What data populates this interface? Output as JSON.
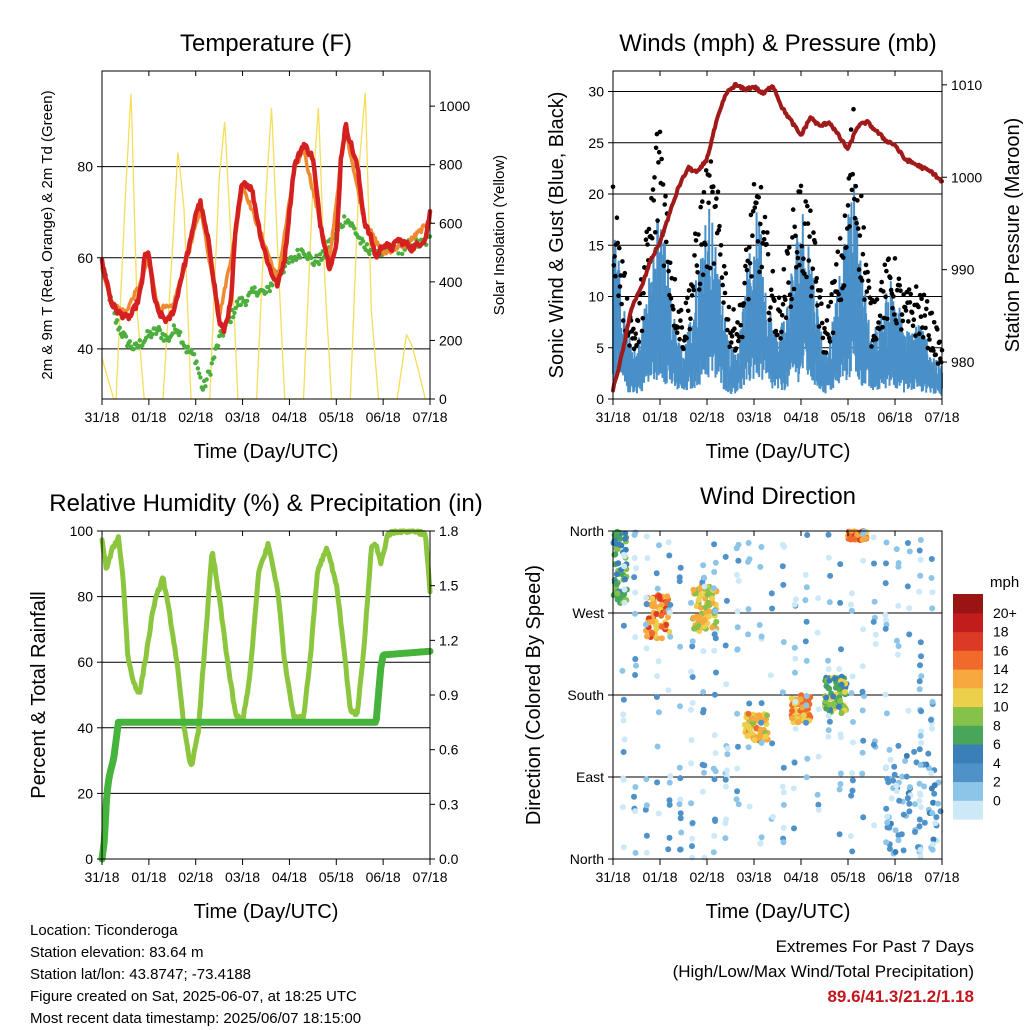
{
  "panels": {
    "temperature": {
      "title": "Temperature (F)",
      "xlabel": "Time (Day/UTC)",
      "ylabel_left": "2m & 9m T (Red, Orange) & 2m Td (Green)",
      "ylabel_right": "Solar Insolation (Yellow)"
    },
    "winds": {
      "title": "Winds (mph) & Pressure (mb)",
      "xlabel": "Time (Day/UTC)",
      "ylabel_left": "Sonic Wind & Gust (Blue, Black)",
      "ylabel_right": "Station Pressure (Maroon)"
    },
    "humidity": {
      "title": "Relative Humidity (%) & Precipitation (in)",
      "xlabel": "Time (Day/UTC)",
      "ylabel_left": "Percent & Total Rainfall"
    },
    "direction": {
      "title": "Wind Direction",
      "xlabel": "Time (Day/UTC)",
      "ylabel_left": "Direction (Colored By Speed)",
      "colorbar_title": "mph"
    }
  },
  "x_ticks": [
    "31/18",
    "01/18",
    "02/18",
    "03/18",
    "04/18",
    "05/18",
    "06/18",
    "07/18"
  ],
  "info": {
    "location": "Location: Ticonderoga",
    "elevation": "Station elevation: 83.64 m",
    "latlon": "Station lat/lon: 43.8747; -73.4188",
    "created": "Figure created on Sat, 2025-06-07, at 18:25 UTC",
    "recent": "Most recent data timestamp: 2025/06/07 18:15:00"
  },
  "extremes": {
    "title": "Extremes For Past 7 Days",
    "subtitle": "(High/Low/Max Wind/Total Precipitation)",
    "values": "89.6/41.3/21.2/1.18"
  },
  "colors": {
    "temp2m": "#d42020",
    "temp9m": "#f08a30",
    "dewpoint": "#4cae3c",
    "solar": "#f7dd5a",
    "wind": "#4a90c8",
    "gust": "#000000",
    "pressure": "#a11a1a",
    "rh": "#8cc63f",
    "precip": "#46b43c",
    "extremes": "#c4161c"
  },
  "chart_data": [
    {
      "type": "line",
      "id": "temperature",
      "x_unit": "days since 31/18 UTC",
      "xlim": [
        0,
        7
      ],
      "ylim": [
        29,
        101
      ],
      "ylim_right": [
        0,
        1120
      ],
      "yticks_left": [
        40,
        60,
        80
      ],
      "yticks_right": [
        0,
        200,
        400,
        600,
        800,
        1000
      ],
      "grid_y": [
        40,
        60,
        80
      ],
      "series": [
        {
          "name": "2m T",
          "color": "#d42020",
          "x": [
            0,
            0.1,
            0.2,
            0.35,
            0.5,
            0.6,
            0.75,
            0.85,
            0.9,
            1.0,
            1.1,
            1.2,
            1.4,
            1.55,
            1.7,
            1.9,
            2.0,
            2.1,
            2.3,
            2.5,
            2.6,
            2.75,
            2.85,
            3.0,
            3.2,
            3.4,
            3.6,
            3.75,
            3.9,
            4.0,
            4.1,
            4.3,
            4.5,
            4.65,
            4.85,
            5.0,
            5.1,
            5.2,
            5.45,
            5.6,
            5.75,
            5.85,
            6.0,
            6.2,
            6.3,
            6.5,
            6.6,
            6.75,
            6.9,
            7.0
          ],
          "y": [
            59,
            55,
            50,
            48,
            47,
            47,
            50,
            54,
            60,
            61,
            52,
            48,
            46,
            49,
            56,
            64,
            70,
            72,
            62,
            46,
            44,
            50,
            66,
            77,
            75,
            64,
            57,
            54,
            60,
            70,
            80,
            85,
            82,
            68,
            58,
            62,
            82,
            89,
            80,
            68,
            64,
            60,
            63,
            62,
            64,
            63,
            62,
            63,
            64,
            70
          ]
        },
        {
          "name": "9m T",
          "color": "#f08a30",
          "x": [
            0,
            0.2,
            0.5,
            0.85,
            1.0,
            1.2,
            1.5,
            1.9,
            2.1,
            2.5,
            2.85,
            3.0,
            3.4,
            3.75,
            4.1,
            4.3,
            4.65,
            4.85,
            5.1,
            5.2,
            5.6,
            6.0,
            6.5,
            7.0
          ],
          "y": [
            58,
            50,
            48,
            55,
            60,
            49,
            49,
            63,
            71,
            47,
            65,
            76,
            65,
            55,
            79,
            84,
            68,
            59,
            81,
            88,
            68,
            61,
            63,
            68
          ]
        },
        {
          "name": "2m Td",
          "color": "#4cae3c",
          "x": [
            0,
            0.1,
            0.3,
            0.5,
            0.7,
            0.9,
            1.0,
            1.2,
            1.4,
            1.6,
            1.8,
            2.0,
            2.15,
            2.3,
            2.5,
            2.7,
            2.9,
            3.1,
            3.3,
            3.5,
            3.7,
            3.9,
            4.1,
            4.3,
            4.5,
            4.7,
            4.9,
            5.1,
            5.2,
            5.4,
            5.6,
            5.8,
            6.0,
            6.2,
            6.4,
            6.6,
            6.8,
            7.0
          ],
          "y": [
            59,
            54,
            46,
            42,
            40,
            42,
            43,
            44,
            42,
            45,
            40,
            38,
            31,
            35,
            42,
            46,
            50,
            51,
            53,
            52,
            56,
            58,
            60,
            62,
            59,
            60,
            64,
            67,
            69,
            66,
            62,
            62,
            61,
            62,
            62,
            63,
            63,
            64
          ]
        },
        {
          "name": "Solar",
          "color": "#f7dd5a",
          "axis": "right",
          "x": [
            0,
            0.25,
            0.3,
            0.5,
            0.62,
            0.75,
            0.9,
            1.0,
            1.2,
            1.3,
            1.5,
            1.62,
            1.75,
            1.9,
            2.0,
            2.2,
            2.3,
            2.5,
            2.62,
            2.75,
            2.9,
            3.0,
            3.2,
            3.3,
            3.5,
            3.62,
            3.75,
            3.9,
            4.0,
            4.2,
            4.3,
            4.5,
            4.62,
            4.75,
            4.9,
            5.0,
            5.2,
            5.3,
            5.5,
            5.62,
            5.75,
            5.9,
            6.0,
            6.2,
            6.3,
            6.5,
            6.62,
            6.75,
            6.9,
            7.0
          ],
          "y": [
            140,
            0,
            0,
            700,
            1050,
            300,
            0,
            0,
            0,
            0,
            500,
            850,
            650,
            0,
            0,
            0,
            0,
            750,
            950,
            550,
            0,
            0,
            0,
            0,
            700,
            1000,
            500,
            0,
            0,
            0,
            0,
            720,
            1000,
            420,
            0,
            0,
            0,
            0,
            820,
            1050,
            300,
            0,
            0,
            0,
            0,
            220,
            180,
            100,
            0,
            0
          ]
        }
      ]
    },
    {
      "type": "scatter",
      "id": "winds",
      "x_unit": "days since 31/18 UTC",
      "xlim": [
        0,
        7
      ],
      "ylim": [
        0,
        32
      ],
      "ylim_right": [
        976.0,
        1011.5
      ],
      "yticks_left": [
        0,
        5,
        10,
        15,
        20,
        25,
        30
      ],
      "yticks_right": [
        980,
        990,
        1000,
        1010
      ],
      "grid_y": [
        5,
        10,
        15,
        20,
        25,
        30
      ],
      "series": [
        {
          "name": "Sonic Wind",
          "color": "#4a90c8",
          "x": [
            0,
            0.1,
            0.3,
            0.5,
            0.8,
            0.95,
            1.1,
            1.3,
            1.5,
            1.7,
            1.9,
            2.05,
            2.3,
            2.5,
            2.7,
            2.95,
            3.1,
            3.3,
            3.5,
            3.7,
            3.95,
            4.1,
            4.3,
            4.5,
            4.7,
            4.95,
            5.1,
            5.3,
            5.5,
            5.7,
            5.95,
            6.2,
            6.5,
            6.8,
            7.0
          ],
          "y": [
            11,
            9,
            4,
            3,
            8,
            12,
            10,
            5,
            3,
            6,
            10,
            12,
            7,
            3,
            4,
            10,
            12,
            6,
            4,
            6,
            11,
            12,
            7,
            3,
            5,
            10,
            14,
            8,
            4,
            5,
            8,
            4,
            5,
            3,
            2
          ]
        },
        {
          "name": "Gust",
          "color": "#000000",
          "x": [
            0,
            0.1,
            0.3,
            0.5,
            0.8,
            0.95,
            1.0,
            1.1,
            1.3,
            1.5,
            1.7,
            1.9,
            2.05,
            2.3,
            2.5,
            2.7,
            2.95,
            3.1,
            3.3,
            3.5,
            3.7,
            3.95,
            4.1,
            4.3,
            4.5,
            4.7,
            4.95,
            5.1,
            5.3,
            5.5,
            5.7,
            5.95,
            6.2,
            6.5,
            6.8,
            7.0
          ],
          "y": [
            24,
            17,
            10,
            7,
            20,
            27,
            30,
            22,
            12,
            8,
            14,
            20,
            23,
            18,
            8,
            9,
            19,
            22,
            15,
            9,
            14,
            21,
            20,
            15,
            7,
            12,
            18,
            29,
            19,
            9,
            12,
            14,
            10,
            11,
            8,
            5
          ]
        },
        {
          "name": "Station Pressure",
          "color": "#a11a1a",
          "axis": "right",
          "x": [
            0,
            0.2,
            0.4,
            0.6,
            0.8,
            1.0,
            1.2,
            1.4,
            1.6,
            1.8,
            2.0,
            2.2,
            2.4,
            2.6,
            2.8,
            3.0,
            3.2,
            3.4,
            3.6,
            3.8,
            4.0,
            4.2,
            4.4,
            4.6,
            4.8,
            5.0,
            5.2,
            5.4,
            5.6,
            5.8,
            6.0,
            6.2,
            6.4,
            6.6,
            6.8,
            7.0
          ],
          "y": [
            977,
            981,
            986,
            988,
            991,
            993,
            996,
            999,
            1001,
            1000.5,
            1002,
            1006,
            1009,
            1010,
            1009.5,
            1009.8,
            1009,
            1010,
            1007.5,
            1006,
            1004.5,
            1006.5,
            1005.5,
            1006,
            1004.5,
            1003,
            1005.5,
            1006,
            1005,
            1004,
            1003.5,
            1002,
            1001.5,
            1001,
            1000.5,
            999.5
          ]
        }
      ]
    },
    {
      "type": "line",
      "id": "humidity",
      "x_unit": "days since 31/18 UTC",
      "xlim": [
        0,
        7
      ],
      "ylim": [
        0,
        100
      ],
      "ylim_right": [
        0,
        1.8
      ],
      "yticks_left": [
        0,
        20,
        40,
        60,
        80,
        100
      ],
      "yticks_right": [
        "0.0",
        "0.3",
        "0.6",
        "0.9",
        "1.2",
        "1.5",
        "1.8"
      ],
      "grid_y": [
        20,
        40,
        60,
        80
      ],
      "series": [
        {
          "name": "RH",
          "color": "#8cc63f",
          "x": [
            0,
            0.1,
            0.2,
            0.35,
            0.45,
            0.55,
            0.65,
            0.8,
            0.95,
            1.1,
            1.3,
            1.45,
            1.6,
            1.75,
            1.9,
            2.05,
            2.2,
            2.35,
            2.5,
            2.7,
            2.85,
            3.0,
            3.15,
            3.35,
            3.55,
            3.75,
            3.9,
            4.1,
            4.3,
            4.45,
            4.6,
            4.8,
            5.0,
            5.15,
            5.3,
            5.45,
            5.6,
            5.75,
            5.85,
            5.95,
            6.1,
            6.3,
            6.5,
            6.7,
            6.9,
            7.0
          ],
          "y": [
            97,
            88,
            94,
            98,
            86,
            62,
            55,
            50,
            63,
            77,
            86,
            74,
            60,
            40,
            28,
            38,
            66,
            94,
            80,
            58,
            44,
            42,
            55,
            88,
            96,
            82,
            60,
            43,
            43,
            62,
            88,
            95,
            84,
            66,
            45,
            44,
            66,
            95,
            96,
            90,
            99,
            100,
            100,
            100,
            99,
            82
          ]
        },
        {
          "name": "Total Rainfall",
          "color": "#46b43c",
          "axis": "right",
          "x": [
            0,
            0.05,
            0.1,
            0.15,
            0.25,
            0.35,
            0.45,
            0.55,
            1.0,
            2.0,
            3.0,
            4.0,
            5.0,
            5.85,
            5.9,
            5.95,
            6.0,
            6.5,
            7.0
          ],
          "y": [
            0.0,
            0.1,
            0.35,
            0.45,
            0.55,
            0.75,
            0.75,
            0.75,
            0.75,
            0.75,
            0.75,
            0.75,
            0.75,
            0.75,
            0.9,
            1.05,
            1.12,
            1.13,
            1.14
          ]
        }
      ]
    },
    {
      "type": "scatter",
      "id": "direction",
      "x_unit": "days since 31/18 UTC",
      "xlim": [
        0,
        7
      ],
      "ylim": [
        0,
        360
      ],
      "yticks": [
        "North",
        "West",
        "South",
        "East",
        "North"
      ],
      "colorbar": {
        "labels": [
          "0",
          "2",
          "4",
          "6",
          "8",
          "10",
          "12",
          "14",
          "16",
          "18",
          "20+"
        ],
        "colors": [
          "#cde9f8",
          "#8cc5e8",
          "#4f92c9",
          "#3a7fb8",
          "#47a65a",
          "#86c14a",
          "#ecd04b",
          "#f7a83f",
          "#ef6a2b",
          "#da3a26",
          "#c21d1d",
          "#9a1414"
        ]
      },
      "clusters": [
        {
          "x_range": [
            0.0,
            0.3
          ],
          "dir_range": [
            280,
            360
          ],
          "speed": 9
        },
        {
          "x_range": [
            0.7,
            1.2
          ],
          "dir_range": [
            240,
            290
          ],
          "speed": 16
        },
        {
          "x_range": [
            1.7,
            2.2
          ],
          "dir_range": [
            250,
            300
          ],
          "speed": 13
        },
        {
          "x_range": [
            2.8,
            3.3
          ],
          "dir_range": [
            130,
            160
          ],
          "speed": 14
        },
        {
          "x_range": [
            3.8,
            4.2
          ],
          "dir_range": [
            150,
            180
          ],
          "speed": 15
        },
        {
          "x_range": [
            4.5,
            5.0
          ],
          "dir_range": [
            160,
            200
          ],
          "speed": 10
        },
        {
          "x_range": [
            5.0,
            5.4
          ],
          "dir_range": [
            350,
            360
          ],
          "speed": 16
        },
        {
          "x_range": [
            5.8,
            7.0
          ],
          "dir_range": [
            0,
            120
          ],
          "speed": 4
        },
        {
          "x_range": [
            0.2,
            7.0
          ],
          "dir_range": [
            0,
            360
          ],
          "speed": 3
        }
      ]
    }
  ]
}
